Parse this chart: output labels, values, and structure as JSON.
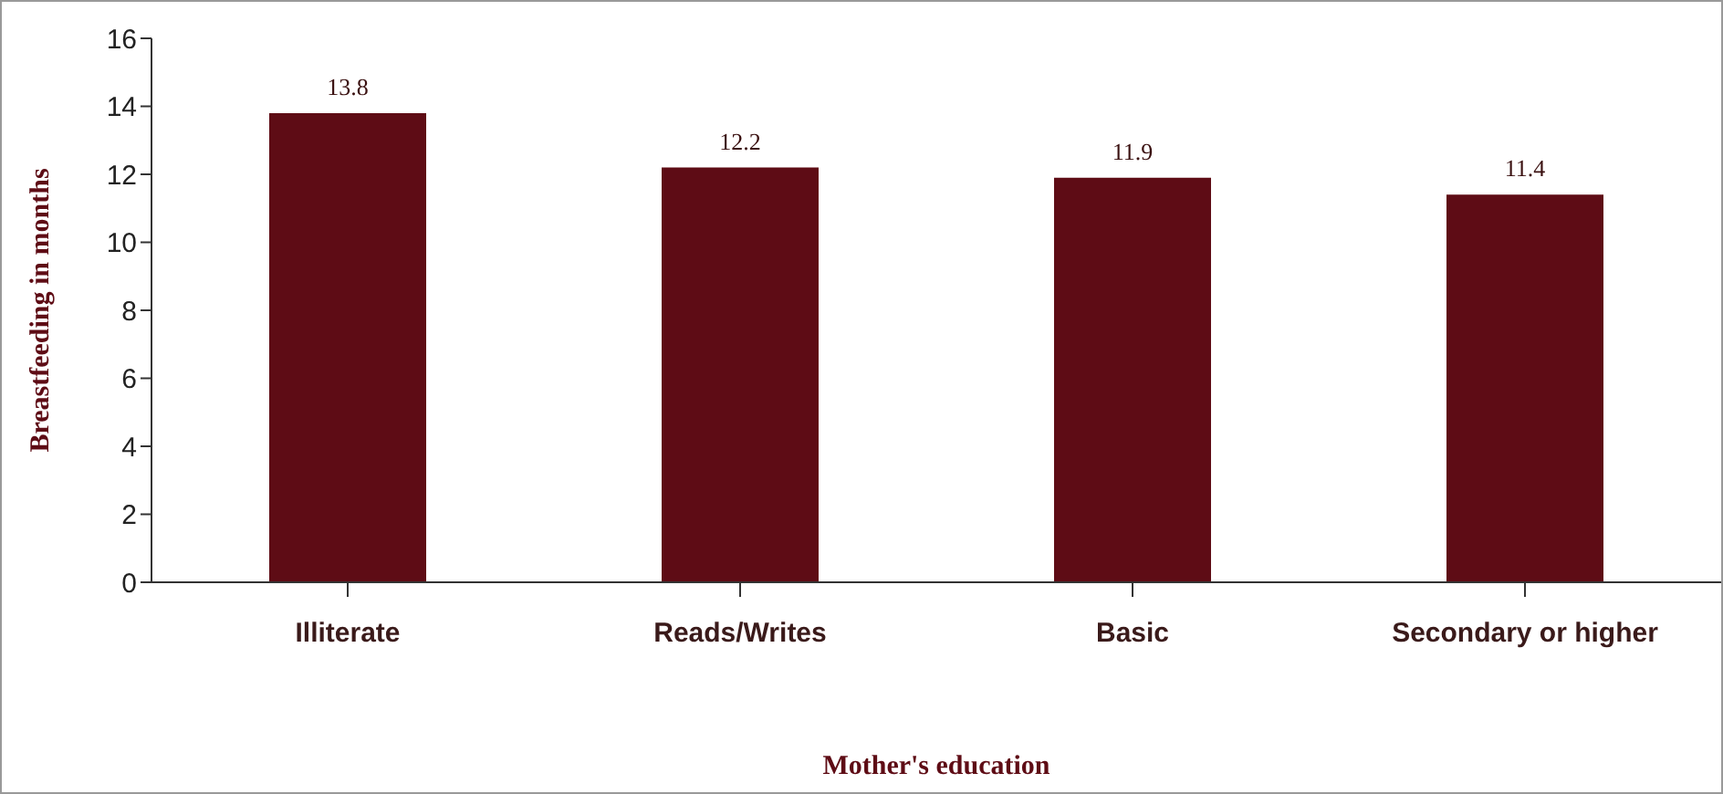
{
  "chart_data": {
    "type": "bar",
    "categories": [
      "Illiterate",
      "Reads/Writes",
      "Basic",
      "Secondary or higher"
    ],
    "values": [
      13.8,
      12.2,
      11.9,
      11.4
    ],
    "color": "#5e0c15",
    "xlabel": "Mother's education",
    "ylabel": "Breastfeeding in months",
    "ylim": [
      0,
      16
    ],
    "yticks": [
      0,
      2,
      4,
      6,
      8,
      10,
      12,
      14,
      16
    ],
    "grid": false,
    "data_labels": true
  }
}
